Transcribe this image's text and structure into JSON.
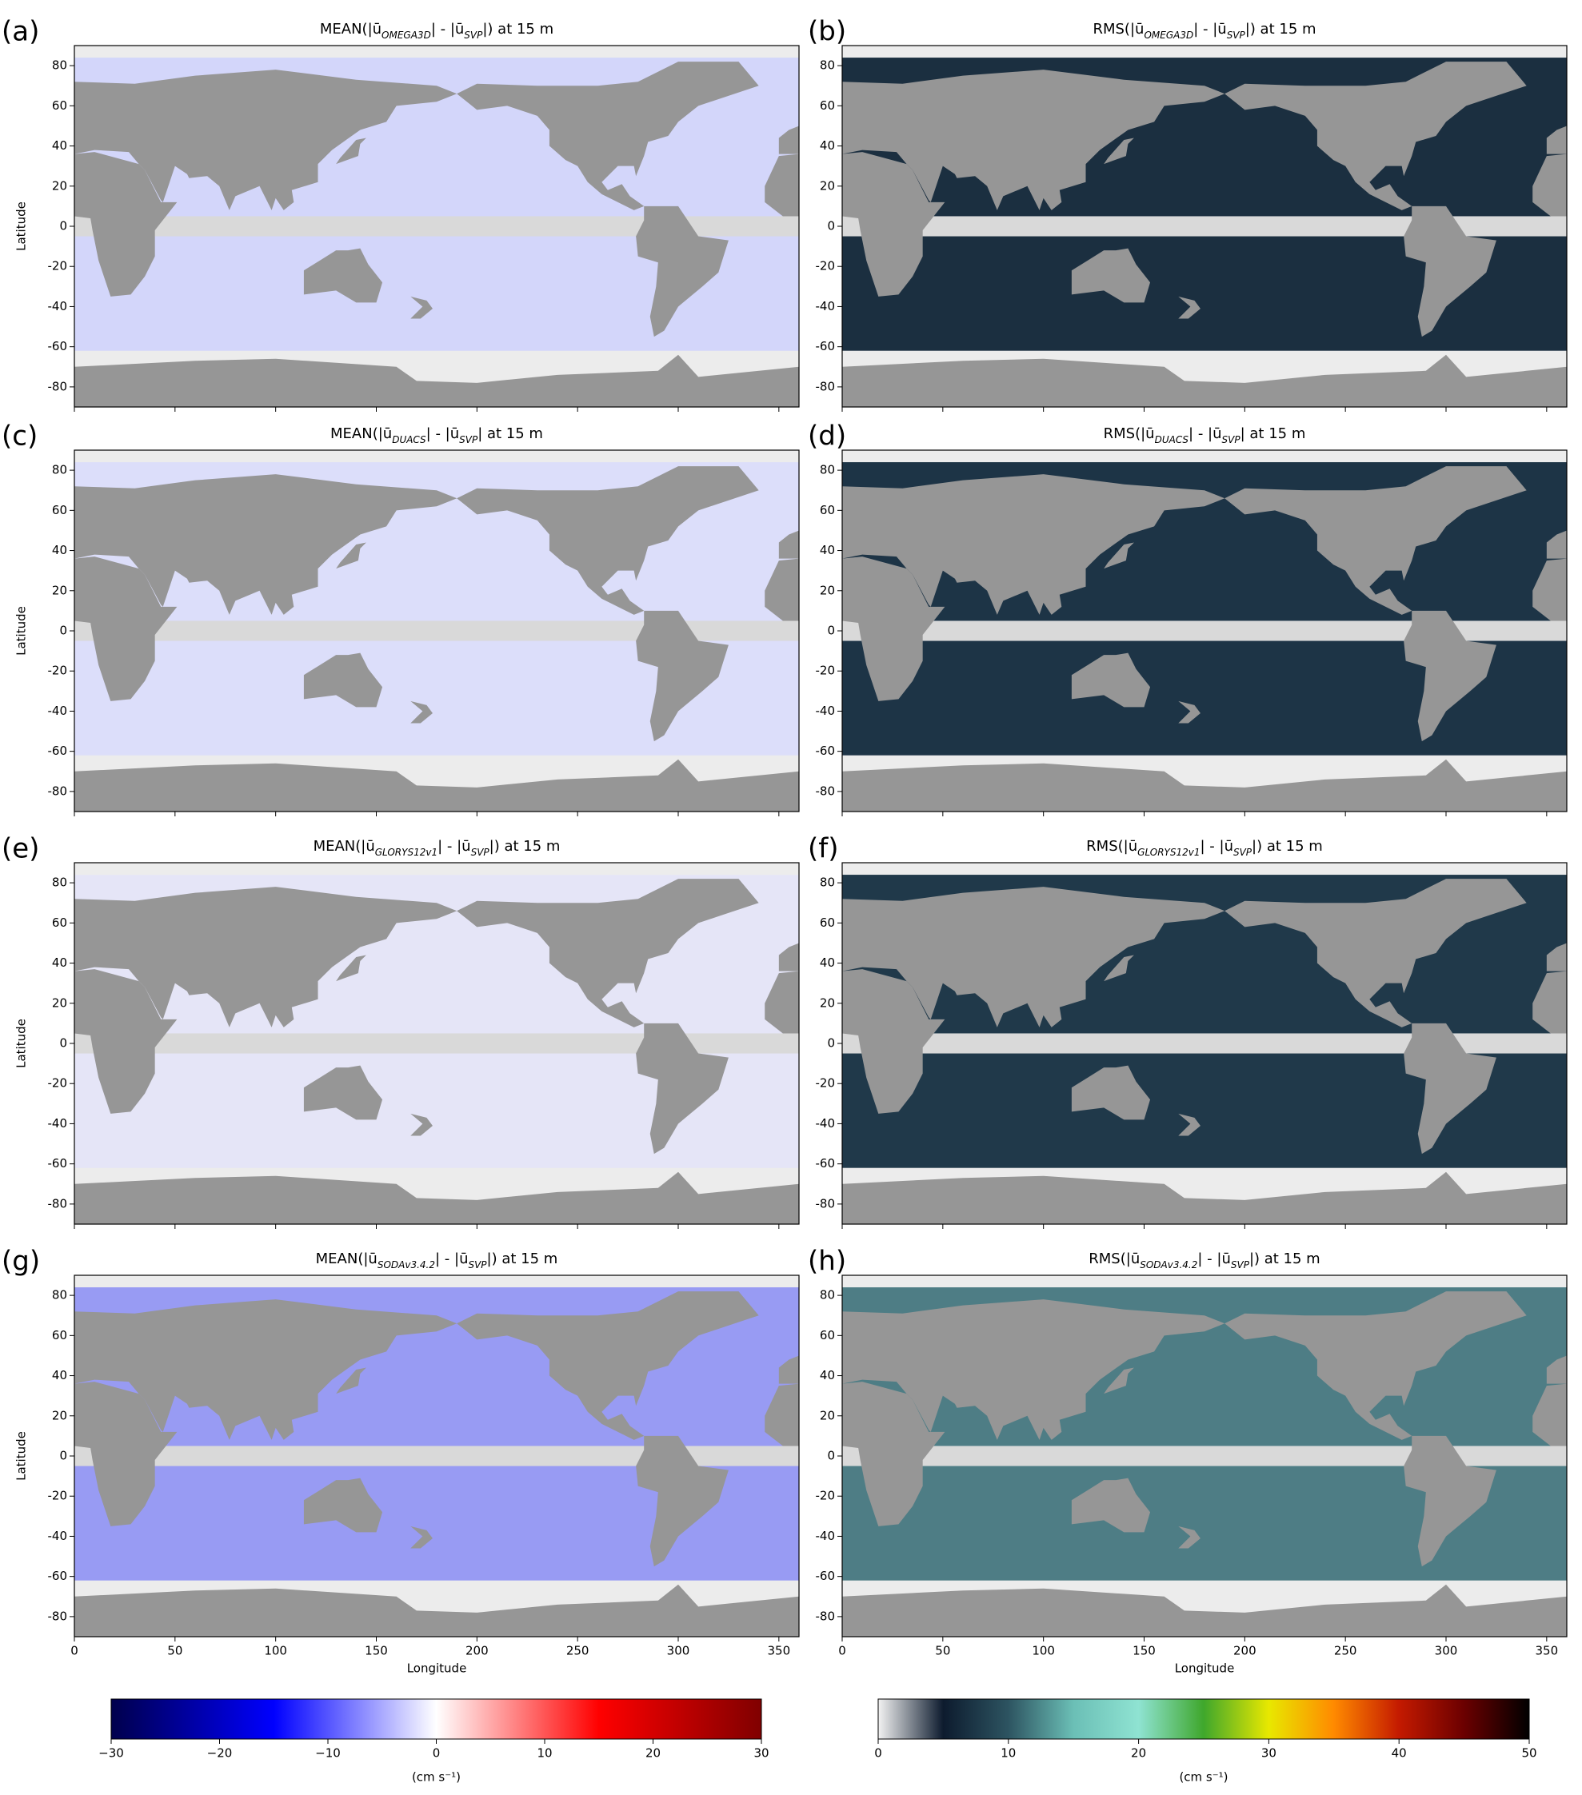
{
  "chart_data": [
    {
      "type": "map",
      "panel_label": "(a)",
      "title": [
        {
          "text": "MEAN(|ū"
        },
        {
          "text": "OMEGA3D",
          "sub": true
        },
        {
          "text": "| - |ū"
        },
        {
          "text": "SVP",
          "sub": true
        },
        {
          "text": "|) at 15 m"
        }
      ],
      "ylabel": "Latitude",
      "xlim": [
        0,
        360
      ],
      "ylim": [
        -90,
        90
      ],
      "xticks": [
        0,
        50,
        100,
        150,
        200,
        250,
        300,
        350
      ],
      "yticks": [
        -80,
        -60,
        -40,
        -20,
        0,
        20,
        40,
        60,
        80
      ],
      "ocean_color": "#d3d6fa"
    },
    {
      "type": "map",
      "panel_label": "(b)",
      "title": [
        {
          "text": "RMS(|ū"
        },
        {
          "text": "OMEGA3D",
          "sub": true
        },
        {
          "text": "| - |ū"
        },
        {
          "text": "SVP",
          "sub": true
        },
        {
          "text": "|) at 15 m"
        }
      ],
      "xlim": [
        0,
        360
      ],
      "ylim": [
        -90,
        90
      ],
      "xticks": [
        0,
        50,
        100,
        150,
        200,
        250,
        300,
        350
      ],
      "yticks": [
        -80,
        -60,
        -40,
        -20,
        0,
        20,
        40,
        60,
        80
      ],
      "ocean_color": "#1b2f40"
    },
    {
      "type": "map",
      "panel_label": "(c)",
      "title": [
        {
          "text": "MEAN(|ū"
        },
        {
          "text": "DUACS",
          "sub": true
        },
        {
          "text": "| - |ū"
        },
        {
          "text": "SVP",
          "sub": true
        },
        {
          "text": "| at 15 m"
        }
      ],
      "ylabel": "Latitude",
      "xlim": [
        0,
        360
      ],
      "ylim": [
        -90,
        90
      ],
      "xticks": [
        0,
        50,
        100,
        150,
        200,
        250,
        300,
        350
      ],
      "yticks": [
        -80,
        -60,
        -40,
        -20,
        0,
        20,
        40,
        60,
        80
      ],
      "ocean_color": "#dcdefa"
    },
    {
      "type": "map",
      "panel_label": "(d)",
      "title": [
        {
          "text": "RMS(|ū"
        },
        {
          "text": "DUACS",
          "sub": true
        },
        {
          "text": "| - |ū"
        },
        {
          "text": "SVP",
          "sub": true
        },
        {
          "text": "| at 15 m"
        }
      ],
      "xlim": [
        0,
        360
      ],
      "ylim": [
        -90,
        90
      ],
      "xticks": [
        0,
        50,
        100,
        150,
        200,
        250,
        300,
        350
      ],
      "yticks": [
        -80,
        -60,
        -40,
        -20,
        0,
        20,
        40,
        60,
        80
      ],
      "ocean_color": "#1d3446"
    },
    {
      "type": "map",
      "panel_label": "(e)",
      "title": [
        {
          "text": "MEAN(|ū"
        },
        {
          "text": "GLORYS12v1",
          "sub": true
        },
        {
          "text": "| - |ū"
        },
        {
          "text": "SVP",
          "sub": true
        },
        {
          "text": "|) at 15 m"
        }
      ],
      "ylabel": "Latitude",
      "xlim": [
        0,
        360
      ],
      "ylim": [
        -90,
        90
      ],
      "xticks": [
        0,
        50,
        100,
        150,
        200,
        250,
        300,
        350
      ],
      "yticks": [
        -80,
        -60,
        -40,
        -20,
        0,
        20,
        40,
        60,
        80
      ],
      "ocean_color": "#e5e5f7"
    },
    {
      "type": "map",
      "panel_label": "(f)",
      "title": [
        {
          "text": "RMS(|ū"
        },
        {
          "text": "GLORYS12v1",
          "sub": true
        },
        {
          "text": "| - |ū"
        },
        {
          "text": "SVP",
          "sub": true
        },
        {
          "text": "|) at 15 m"
        }
      ],
      "xlim": [
        0,
        360
      ],
      "ylim": [
        -90,
        90
      ],
      "xticks": [
        0,
        50,
        100,
        150,
        200,
        250,
        300,
        350
      ],
      "yticks": [
        -80,
        -60,
        -40,
        -20,
        0,
        20,
        40,
        60,
        80
      ],
      "ocean_color": "#20394a"
    },
    {
      "type": "map",
      "panel_label": "(g)",
      "title": [
        {
          "text": "MEAN(|ū"
        },
        {
          "text": "SODAv3.4.2",
          "sub": true
        },
        {
          "text": "| - |ū"
        },
        {
          "text": "SVP",
          "sub": true
        },
        {
          "text": "|) at 15 m"
        }
      ],
      "ylabel": "Latitude",
      "xlabel": "Longitude",
      "xlim": [
        0,
        360
      ],
      "ylim": [
        -90,
        90
      ],
      "xticks": [
        0,
        50,
        100,
        150,
        200,
        250,
        300,
        350
      ],
      "yticks": [
        -80,
        -60,
        -40,
        -20,
        0,
        20,
        40,
        60,
        80
      ],
      "ocean_color": "#989bf3"
    },
    {
      "type": "map",
      "panel_label": "(h)",
      "title": [
        {
          "text": "RMS(|ū"
        },
        {
          "text": "SODAv3.4.2",
          "sub": true
        },
        {
          "text": "| - |ū"
        },
        {
          "text": "SVP",
          "sub": true
        },
        {
          "text": "|) at 15 m"
        }
      ],
      "xlabel": "Longitude",
      "xlim": [
        0,
        360
      ],
      "ylim": [
        -90,
        90
      ],
      "xticks": [
        0,
        50,
        100,
        150,
        200,
        250,
        300,
        350
      ],
      "yticks": [
        -80,
        -60,
        -40,
        -20,
        0,
        20,
        40,
        60,
        80
      ],
      "ocean_color": "#4e7d85"
    },
    {
      "type": "colorbar",
      "label": "(cm s⁻¹)",
      "xlim": [
        -30,
        30
      ],
      "xticks": [
        {
          "value": -30,
          "label": "−30"
        },
        {
          "value": -20,
          "label": "−20"
        },
        {
          "value": -10,
          "label": "−10"
        },
        0,
        10,
        20,
        30
      ],
      "colors": [
        "#00004c",
        "#0000ff",
        "#ffffff",
        "#ff0000",
        "#800000"
      ]
    },
    {
      "type": "colorbar",
      "label": "(cm s⁻¹)",
      "xlim": [
        0,
        50
      ],
      "xticks": [
        0,
        10,
        20,
        30,
        40,
        50
      ],
      "colors": [
        "#f2f2f2",
        "#0d1b2e",
        "#2d5461",
        "#6bbfb6",
        "#8fe3d2",
        "#3fa72c",
        "#e8e800",
        "#ff8a00",
        "#c41a00",
        "#6b0000",
        "#000000"
      ]
    }
  ]
}
